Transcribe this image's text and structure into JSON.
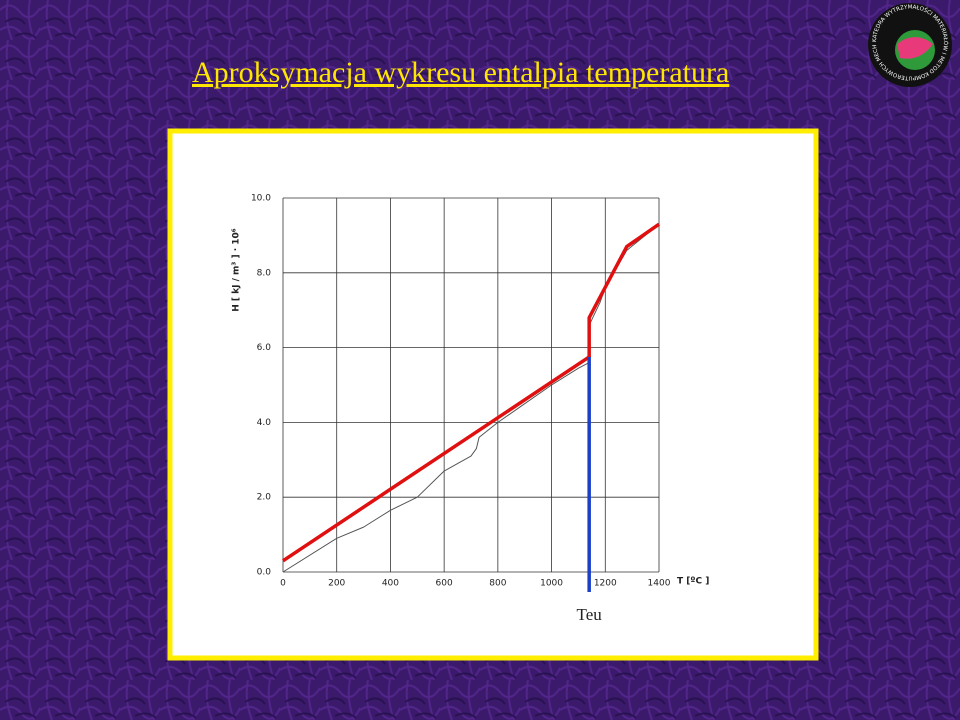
{
  "chart_data": {
    "type": "line",
    "title": "Aproksymacja wykresu entalpia temperatura",
    "y_label": "H [ kJ / m³ ] · 10⁶",
    "x_label": "T [ºC ]",
    "xlim": [
      0,
      1400
    ],
    "xticks": [
      0,
      200,
      400,
      600,
      800,
      1000,
      1200,
      1400
    ],
    "ylim": [
      0,
      10
    ],
    "yticks": [
      {
        "value": 0,
        "label": "0.0"
      },
      {
        "value": 2,
        "label": "2.0"
      },
      {
        "value": 4,
        "label": "4.0"
      },
      {
        "value": 6,
        "label": "6.0"
      },
      {
        "value": 8,
        "label": "8.0"
      },
      {
        "value": 10,
        "label": "10.0"
      }
    ],
    "grid": true,
    "series": [
      {
        "color": "#555555",
        "x": [
          0,
          200,
          300,
          400,
          500,
          600,
          700,
          720,
          730,
          800,
          900,
          1000,
          1100,
          1140,
          1140,
          1180,
          1200,
          1280,
          1400
        ],
        "values": [
          0.0,
          0.9,
          1.2,
          1.65,
          2.0,
          2.7,
          3.1,
          3.3,
          3.6,
          4.0,
          4.5,
          5.0,
          5.45,
          5.6,
          6.6,
          7.2,
          7.6,
          8.6,
          9.3
        ]
      },
      {
        "color": "#e01010",
        "x": [
          0,
          1140,
          1140,
          1280,
          1400
        ],
        "values": [
          0.3,
          5.75,
          6.8,
          8.7,
          9.3
        ]
      },
      {
        "color": "#1a3fc8",
        "x": [
          1140,
          1140
        ],
        "values": [
          0,
          5.75
        ]
      }
    ],
    "annotations": [
      {
        "text": "Teu",
        "x": 1140
      }
    ]
  },
  "logo": {
    "text": "KATEDRA WYTRZYMAŁOŚCI MATERIAŁÓW I METOD KOMPUTEROWYCH MECHANIKI"
  }
}
